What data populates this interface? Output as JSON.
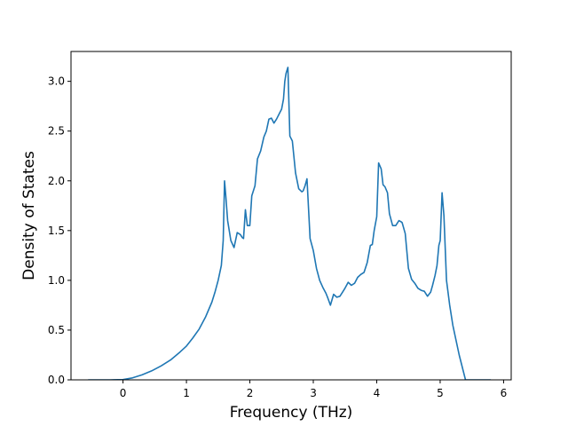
{
  "chart_data": {
    "type": "line",
    "title": "",
    "xlabel": "Frequency (THz)",
    "ylabel": "Density of States",
    "xlim": [
      -0.82,
      6.12
    ],
    "ylim": [
      0,
      3.3
    ],
    "xticks": [
      0,
      1,
      2,
      3,
      4,
      5,
      6
    ],
    "yticks": [
      0.0,
      0.5,
      1.0,
      1.5,
      2.0,
      2.5,
      3.0
    ],
    "xtick_labels": [
      "0",
      "1",
      "2",
      "3",
      "4",
      "5",
      "6"
    ],
    "ytick_labels": [
      "0.0",
      "0.5",
      "1.0",
      "1.5",
      "2.0",
      "2.5",
      "3.0"
    ],
    "grid": false,
    "legend": "none",
    "series": [
      {
        "color": "#1f77b4",
        "x": [
          -0.55,
          -0.2,
          0.0,
          0.15,
          0.3,
          0.45,
          0.6,
          0.75,
          0.9,
          1.0,
          1.1,
          1.2,
          1.3,
          1.4,
          1.45,
          1.5,
          1.55,
          1.58,
          1.6,
          1.62,
          1.65,
          1.7,
          1.75,
          1.8,
          1.85,
          1.88,
          1.9,
          1.93,
          1.96,
          2.0,
          2.03,
          2.08,
          2.12,
          2.17,
          2.22,
          2.26,
          2.3,
          2.34,
          2.38,
          2.42,
          2.46,
          2.5,
          2.53,
          2.55,
          2.57,
          2.6,
          2.63,
          2.67,
          2.72,
          2.77,
          2.82,
          2.84,
          2.87,
          2.9,
          2.95,
          3.0,
          3.05,
          3.1,
          3.15,
          3.2,
          3.23,
          3.27,
          3.32,
          3.37,
          3.42,
          3.46,
          3.5,
          3.55,
          3.6,
          3.65,
          3.7,
          3.75,
          3.8,
          3.85,
          3.9,
          3.93,
          3.96,
          4.0,
          4.03,
          4.07,
          4.1,
          4.13,
          4.17,
          4.2,
          4.25,
          4.3,
          4.35,
          4.38,
          4.4,
          4.45,
          4.5,
          4.55,
          4.6,
          4.65,
          4.7,
          4.75,
          4.8,
          4.85,
          4.88,
          4.92,
          4.95,
          4.98,
          5.0,
          5.03,
          5.06,
          5.1,
          5.15,
          5.2,
          5.25,
          5.3,
          5.4,
          5.6,
          5.8
        ],
        "y": [
          0.0,
          0.0,
          0.003,
          0.02,
          0.05,
          0.09,
          0.14,
          0.2,
          0.28,
          0.34,
          0.42,
          0.51,
          0.63,
          0.78,
          0.88,
          1.0,
          1.15,
          1.4,
          2.0,
          1.85,
          1.6,
          1.4,
          1.33,
          1.48,
          1.46,
          1.43,
          1.42,
          1.71,
          1.55,
          1.55,
          1.85,
          1.95,
          2.22,
          2.3,
          2.44,
          2.5,
          2.62,
          2.63,
          2.58,
          2.62,
          2.67,
          2.72,
          2.82,
          3.0,
          3.08,
          3.14,
          2.45,
          2.4,
          2.08,
          1.92,
          1.89,
          1.9,
          1.95,
          2.02,
          1.42,
          1.3,
          1.12,
          1.0,
          0.93,
          0.87,
          0.82,
          0.75,
          0.86,
          0.83,
          0.84,
          0.88,
          0.92,
          0.98,
          0.95,
          0.97,
          1.03,
          1.06,
          1.08,
          1.18,
          1.35,
          1.36,
          1.5,
          1.64,
          2.18,
          2.12,
          1.96,
          1.94,
          1.88,
          1.67,
          1.55,
          1.55,
          1.6,
          1.59,
          1.58,
          1.47,
          1.12,
          1.01,
          0.97,
          0.92,
          0.9,
          0.89,
          0.84,
          0.88,
          0.95,
          1.05,
          1.15,
          1.35,
          1.4,
          1.88,
          1.65,
          1.0,
          0.75,
          0.55,
          0.4,
          0.25,
          0.0,
          0.0,
          0.0
        ]
      }
    ]
  }
}
